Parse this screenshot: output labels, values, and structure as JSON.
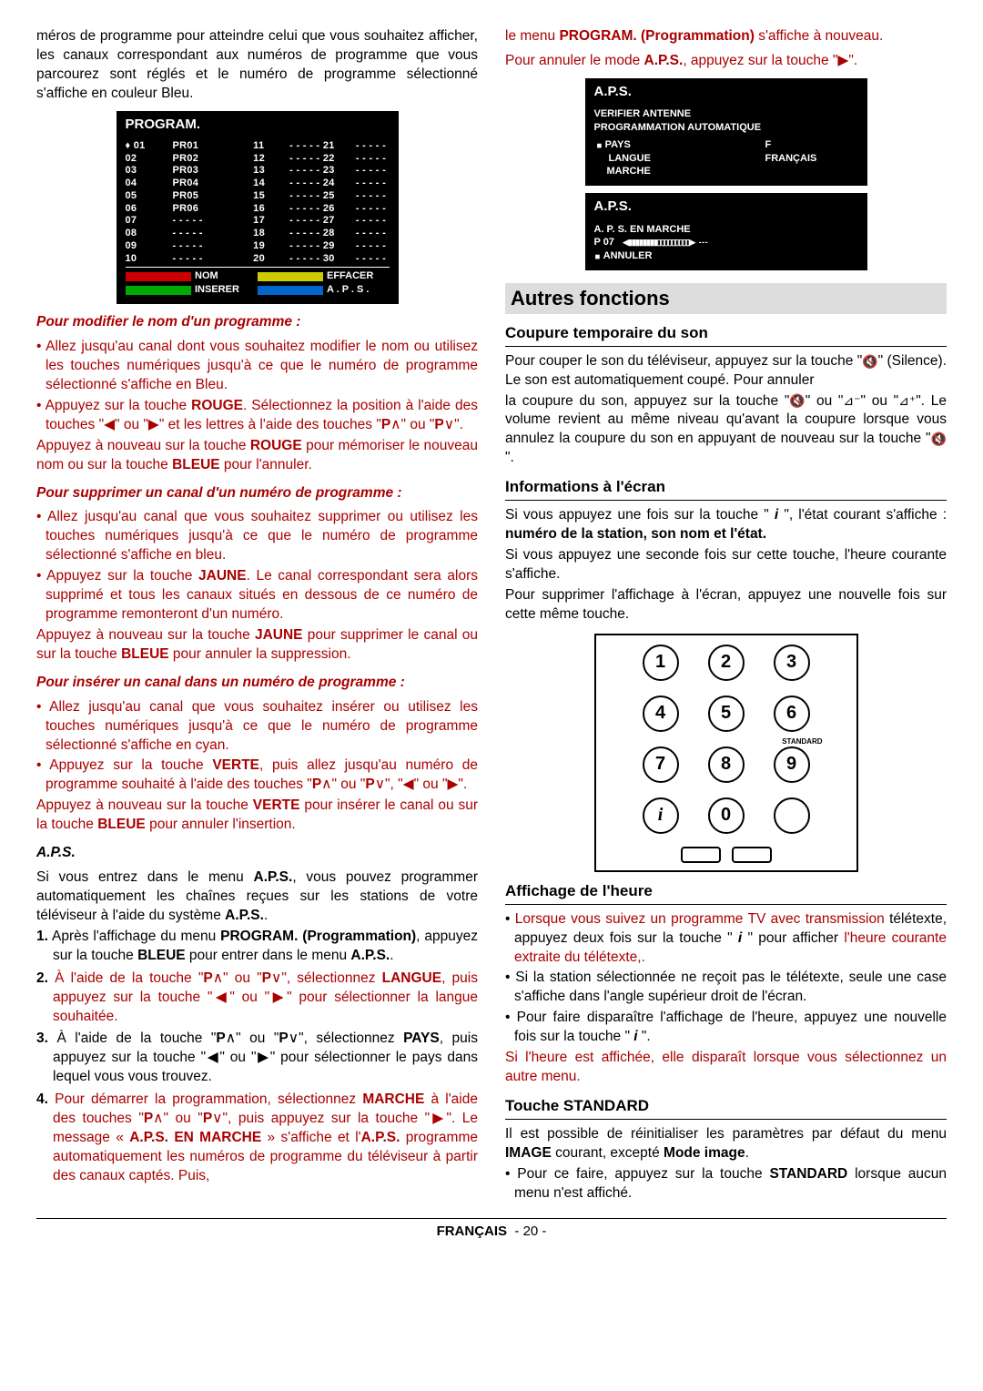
{
  "left": {
    "intro": "méros de programme pour atteindre celui que vous souhaitez afficher, les canaux correspondant aux numéros de programme que vous parcourez sont réglés et le numéro de programme sélectionné s'affiche en couleur Bleu.",
    "program_osd": {
      "title": "PROGRAM.",
      "rows": [
        [
          "♦ 01",
          "PR01",
          "11",
          "- - - - -",
          "21",
          "- - - - -"
        ],
        [
          "02",
          "PR02",
          "12",
          "- - - - -",
          "22",
          "- - - - -"
        ],
        [
          "03",
          "PR03",
          "13",
          "- - - - -",
          "23",
          "- - - - -"
        ],
        [
          "04",
          "PR04",
          "14",
          "- - - - -",
          "24",
          "- - - - -"
        ],
        [
          "05",
          "PR05",
          "15",
          "- - - - -",
          "25",
          "- - - - -"
        ],
        [
          "06",
          "PR06",
          "16",
          "- - - - -",
          "26",
          "- - - - -"
        ],
        [
          "07",
          "- - - - -",
          "17",
          "- - - - -",
          "27",
          "- - - - -"
        ],
        [
          "08",
          "- - - - -",
          "18",
          "- - - - -",
          "28",
          "- - - - -"
        ],
        [
          "09",
          "- - - - -",
          "19",
          "- - - - -",
          "29",
          "- - - - -"
        ],
        [
          "10",
          "- - - - -",
          "20",
          "- - - - -",
          "30",
          "- - - - -"
        ]
      ],
      "footer": [
        {
          "color": "#c00",
          "label": "NOM"
        },
        {
          "color": "#cc0",
          "label": "EFFACER"
        },
        {
          "color": "#0a0",
          "label": "INSERER"
        },
        {
          "color": "#06c",
          "label": "A . P . S ."
        }
      ]
    },
    "h_modify": "Pour modifier le nom d'un programme :",
    "modify_items": [
      "Allez jusqu'au canal dont vous souhaitez modifier le nom ou utilisez les touches numériques jusqu'à ce que le numéro de programme sélectionné s'affiche en Bleu.",
      "Appuyez sur la touche <b>ROUGE</b>. Sélectionnez la position à l'aide des touches \"<span class='arrow'>◀</span>\" ou \"<span class='arrow'>▶</span>\" et les lettres à l'aide des touches \"<b>P</b>∧\" ou \"<b>P</b>∨\"."
    ],
    "modify_after": "Appuyez à nouveau sur la touche <b>ROUGE</b> pour mémoriser le nouveau nom ou sur la touche <b>BLEUE</b> pour l'annuler.",
    "h_delete": "Pour supprimer un canal d'un numéro de programme :",
    "delete_items": [
      "Allez jusqu'au canal que vous souhaitez supprimer ou utilisez les touches numériques jusqu'à ce que le numéro de programme sélectionné s'affiche en bleu.",
      "Appuyez sur la touche <b>JAUNE</b>. Le canal correspondant sera alors supprimé et tous les canaux situés en dessous de ce numéro de programme remonteront d'un numéro."
    ],
    "delete_after": "Appuyez à nouveau sur la touche <b>JAUNE</b> pour supprimer le canal ou sur la touche <b>BLEUE</b> pour annuler la suppression.",
    "h_insert": "Pour insérer un canal dans un numéro de programme :",
    "insert_items": [
      "Allez jusqu'au canal que vous souhaitez insérer ou utilisez les touches numériques jusqu'à ce que le numéro de programme sélectionné s'affiche en cyan.",
      "Appuyez sur la touche <b>VERTE</b>, puis allez jusqu'au numéro de programme souhaité à l'aide des touches \"<b>P</b>∧\" ou \"<b>P</b>∨\", \"<span class='arrow'>◀</span>\" ou \"<span class='arrow'>▶</span>\"."
    ],
    "insert_after": "Appuyez à nouveau sur la touche <b>VERTE</b> pour insérer le canal ou sur la touche <b>BLEUE</b> pour annuler l'insertion.",
    "h_aps": "A.P.S.",
    "aps_intro": "Si vous entrez dans le menu <b>A.P.S.</b>, vous pouvez programmer automatiquement les chaînes reçues sur les stations de votre téléviseur à l'aide du système <b>A.P.S.</b>.",
    "aps_steps": [
      "<b>1.</b> Après l'affichage du menu <b>PROGRAM. (Programmation)</b>, appuyez sur la touche <b>BLEUE</b> pour entrer dans le menu <b>A.P.S.</b>.",
      "<b>2.</b> <span class='red'>À l'aide de la touche \"<b>P</b>∧\" ou \"<b>P</b>∨\", sélectionnez <b>LANGUE</b>, puis appuyez sur la touche \"<span class='arrow'>◀</span>\" ou \"<span class='arrow'>▶</span>\" pour sélectionner la langue souhaitée.</span>",
      "<b>3.</b> À l'aide de la touche \"<b>P</b>∧\" ou \"<b>P</b>∨\", sélectionnez <b>PAYS</b>, puis appuyez sur la touche \"<span class='arrow'>◀</span>\" ou \"<span class='arrow'>▶</span>\" pour sélectionner le pays dans lequel vous vous trouvez.",
      "<b>4.</b> <span class='red'>Pour démarrer la programmation, sélectionnez <b>MARCHE</b> à l'aide des touches \"<b>P</b>∧\" ou \"<b>P</b>∨\", puis appuyez sur la touche \"<span class='arrow'>▶</span>\". Le message « <b>A.P.S. EN MARCHE</b> » s'affiche et l'<b>A.P.S.</b> programme automatiquement les numéros de programme du téléviseur à partir des canaux captés. Puis,</span>"
    ]
  },
  "right": {
    "top1": "le menu <b>PROGRAM. (Programmation)</b> s'affiche à nouveau.",
    "top2": "Pour annuler le mode <b>A.P.S.</b>, appuyez sur la touche \"<span class='arrow'>▶</span>\".",
    "aps_osd1": {
      "title": "A.P.S.",
      "l1": "VERIFIER  ANTENNE",
      "l2": "PROGRAMMATION  AUTOMATIQUE",
      "pays_l": "PAYS",
      "pays_r": "F",
      "lang_l": "LANGUE",
      "lang_r": "FRANÇAIS",
      "marche": "MARCHE"
    },
    "aps_osd2": {
      "title": "A.P.S.",
      "l1": "A.  P.  S.  EN  MARCHE",
      "l2": "P  07",
      "l3": "ANNULER"
    },
    "section1": "Autres  fonctions",
    "h_mute": "Coupure temporaire du son",
    "mute_p1": "Pour couper le son du téléviseur, appuyez sur la touche \"<span class='speaker-x'>🔇</span>\" (Silence). Le son est automatiquement coupé. Pour annuler",
    "mute_p2": "la coupure du son, appuyez sur la touche \"<span class='speaker-x'>🔇</span>\" ou \"<span class='speaker-x'>⊿⁻</span>\" ou \"<span class='speaker-x'>⊿⁺</span>\". Le volume revient au même niveau qu'avant la coupure lorsque vous annulez la coupure du son en appuyant de nouveau sur la touche \"<span class='speaker-x'>🔇</span>\".",
    "h_info": "Informations à l'écran",
    "info_p1": "Si vous appuyez une fois sur la touche \" <b><i>i</i></b> \", l'état courant s'affiche : <b>numéro de la station, son nom et l'état.</b>",
    "info_p2": "Si vous appuyez une seconde fois sur cette touche, l'heure courante s'affiche.",
    "info_p3": "Pour supprimer l'affichage à l'écran, appuyez une nouvelle fois sur cette même touche.",
    "keypad": {
      "keys": [
        "1",
        "2",
        "3",
        "4",
        "5",
        "6",
        "7",
        "8",
        "9",
        "i",
        "0",
        ""
      ],
      "std": "STANDARD"
    },
    "h_time": "Affichage de l'heure",
    "time_items": [
      "<span class='red'>Lorsque vous suivez un programme TV avec transmission</span> télétexte, appuyez deux fois sur la touche \" <b><i>i</i></b> \" pour afficher <span class='red'>l'heure courante extraite du télétexte,.</span>",
      "Si la station sélectionnée ne reçoit pas le télétexte, seule une case s'affiche dans l'angle supérieur droit de l'écran.",
      "Pour faire disparaître l'affichage de l'heure, appuyez une nouvelle fois sur la touche \" <b><i>i</i></b> \"."
    ],
    "time_after": "Si l'heure est affichée, elle disparaît lorsque vous sélectionnez un autre menu.",
    "h_std": "Touche STANDARD",
    "std_p": "Il est possible de réinitialiser les paramètres par défaut du menu <b>IMAGE</b> courant, excepté <b>Mode image</b>.",
    "std_item": "Pour ce faire, appuyez sur la touche <b>STANDARD</b> lorsque aucun menu n'est affiché."
  },
  "footer": {
    "lang": "FRANÇAIS",
    "page": "- 20 -"
  }
}
